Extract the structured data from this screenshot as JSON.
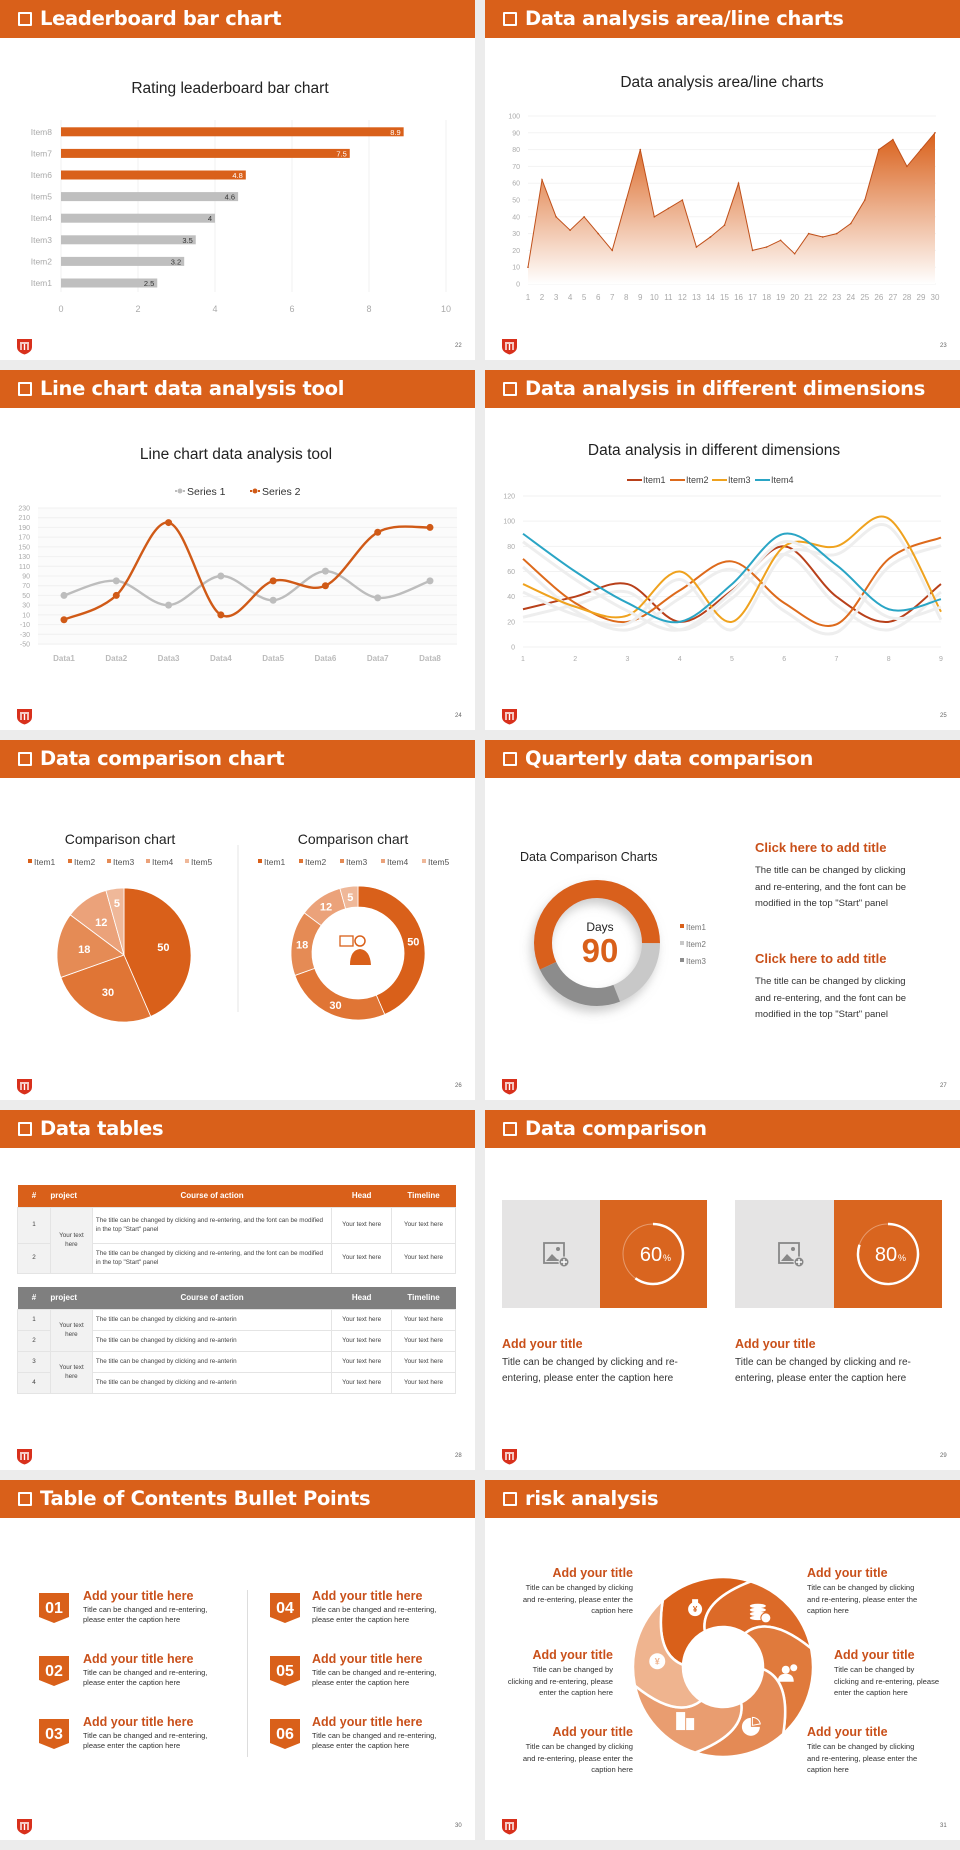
{
  "colors": {
    "accent": "#d9601a",
    "grey": "#bfbfbf",
    "title_orange": "#c9501a"
  },
  "slides": [
    {
      "title": "Leaderboard bar chart",
      "page": "22"
    },
    {
      "title": "Data analysis area/line charts",
      "page": "23"
    },
    {
      "title": "Line chart data analysis tool",
      "page": "24"
    },
    {
      "title": "Data analysis in different dimensions",
      "page": "25"
    },
    {
      "title": "Data comparison chart",
      "page": "26"
    },
    {
      "title": "Quarterly data comparison",
      "page": "27"
    },
    {
      "title": "Data tables",
      "page": "28"
    },
    {
      "title": "Data comparison",
      "page": "29"
    },
    {
      "title": "Table of Contents Bullet Points",
      "page": "30"
    },
    {
      "title": "risk analysis",
      "page": "31"
    }
  ],
  "chart_data": [
    {
      "type": "bar",
      "orientation": "horizontal",
      "title": "Rating leaderboard bar chart",
      "categories": [
        "Item1",
        "Item2",
        "Item3",
        "Item4",
        "Item5",
        "Item6",
        "Item7",
        "Item8"
      ],
      "values": [
        2.5,
        3.2,
        3.5,
        4,
        4.6,
        4.8,
        7.5,
        8.9
      ],
      "highlighted": [
        "Item6",
        "Item7",
        "Item8"
      ],
      "xlim": [
        0,
        10
      ],
      "xticks": [
        0,
        2,
        4,
        6,
        8,
        10
      ],
      "colors": {
        "highlight": "#d9601a",
        "base": "#bfbfbf"
      },
      "data_labels": true
    },
    {
      "type": "area",
      "title": "Data analysis area/line charts",
      "x": [
        1,
        2,
        3,
        4,
        5,
        6,
        7,
        8,
        9,
        10,
        11,
        12,
        13,
        14,
        15,
        16,
        17,
        18,
        19,
        20,
        21,
        22,
        23,
        24,
        25,
        26,
        27,
        28,
        29,
        30
      ],
      "values": [
        10,
        62,
        40,
        32,
        40,
        30,
        20,
        50,
        80,
        40,
        45,
        50,
        22,
        28,
        35,
        60,
        20,
        22,
        26,
        18,
        30,
        28,
        30,
        36,
        50,
        80,
        86,
        70,
        80,
        90
      ],
      "ylim": [
        0,
        100
      ],
      "yticks": [
        0,
        10,
        20,
        30,
        40,
        50,
        60,
        70,
        80,
        90,
        100
      ],
      "color": "#d9601a"
    },
    {
      "type": "line",
      "smooth": true,
      "title": "Line chart data analysis tool",
      "categories": [
        "Data1",
        "Data2",
        "Data3",
        "Data4",
        "Data5",
        "Data6",
        "Data7",
        "Data8"
      ],
      "series": [
        {
          "name": "Series 1",
          "values": [
            50,
            80,
            30,
            90,
            40,
            100,
            45,
            80
          ],
          "color": "#bdbdbd"
        },
        {
          "name": "Series 2",
          "values": [
            0,
            50,
            200,
            10,
            80,
            70,
            180,
            190
          ],
          "color": "#d05a17"
        }
      ],
      "ylim": [
        -50,
        230
      ],
      "yticks": [
        -50,
        -30,
        -10,
        10,
        30,
        50,
        70,
        90,
        110,
        130,
        150,
        170,
        190,
        210,
        230
      ],
      "legend": "top"
    },
    {
      "type": "line",
      "smooth": true,
      "title": "Data analysis in different dimensions",
      "x": [
        1,
        2,
        3,
        4,
        5,
        6,
        7,
        8,
        9
      ],
      "series": [
        {
          "name": "Item1",
          "values": [
            30,
            40,
            50,
            20,
            45,
            80,
            40,
            20,
            50
          ],
          "color": "#b8401a"
        },
        {
          "name": "Item2",
          "values": [
            70,
            35,
            20,
            45,
            68,
            35,
            18,
            70,
            87
          ],
          "color": "#dd6a1c"
        },
        {
          "name": "Item3",
          "values": [
            50,
            32,
            25,
            60,
            20,
            80,
            80,
            102,
            28
          ],
          "color": "#efa21e"
        },
        {
          "name": "Item4",
          "values": [
            90,
            60,
            35,
            20,
            50,
            90,
            65,
            30,
            38
          ],
          "color": "#2aa5c5"
        }
      ],
      "ylim": [
        0,
        120
      ],
      "yticks": [
        0,
        20,
        40,
        60,
        80,
        100,
        120
      ],
      "legend": "top"
    },
    {
      "type": "pie",
      "title": "Comparison chart",
      "labels": [
        "Item1",
        "Item2",
        "Item3",
        "Item4",
        "Item5"
      ],
      "values": [
        50,
        30,
        18,
        12,
        5
      ],
      "colors": [
        "#d9601a",
        "#e07535",
        "#e58b55",
        "#eba27a",
        "#efb899"
      ],
      "legend": "top"
    },
    {
      "type": "pie",
      "donut": true,
      "title": "Comparison chart",
      "labels": [
        "Item1",
        "Item2",
        "Item3",
        "Item4",
        "Item5"
      ],
      "values": [
        50,
        30,
        18,
        12,
        5
      ],
      "colors": [
        "#d9601a",
        "#e07535",
        "#e58b55",
        "#eba27a",
        "#efb899"
      ],
      "center_icon": "presenter-icon",
      "legend": "top"
    },
    {
      "type": "pie",
      "donut": true,
      "title": "Data Comparison Charts",
      "labels": [
        "Item1",
        "Item2",
        "Item3"
      ],
      "values": [
        57,
        19,
        24
      ],
      "colors": [
        "#d9601a",
        "#c8c8c8",
        "#8c8c8c"
      ],
      "center_label": "Days",
      "center_value": "90",
      "legend": "right"
    }
  ],
  "quarterly": {
    "blocks": [
      {
        "title": "Click here to add title",
        "lines": [
          "The title can be changed by clicking",
          "and re-entering, and the font can be",
          "modified in the top \"Start\" panel"
        ]
      },
      {
        "title": "Click here to add title",
        "lines": [
          "The title can be changed by clicking",
          "and re-entering, and the font can be",
          "modified in the top \"Start\" panel"
        ]
      }
    ]
  },
  "tables": [
    {
      "header": [
        "#",
        "project",
        "Course of action",
        "Head",
        "Timeline"
      ],
      "header_color": "#d9601a",
      "projects": [
        {
          "label": "Your text here",
          "span": 2
        }
      ],
      "rows": [
        {
          "num": "1",
          "course": "The title can be changed by clicking and re-entering, and the font can be modified in the top \"Start\" panel",
          "head": "Your text here",
          "timeline": "Your text here"
        },
        {
          "num": "2",
          "course": "The title can be changed by clicking and re-entering, and the font can be modified in the top \"Start\" panel",
          "head": "Your text here",
          "timeline": "Your text here"
        }
      ]
    },
    {
      "header": [
        "#",
        "project",
        "Course of action",
        "Head",
        "Timeline"
      ],
      "header_color": "#7f7f7f",
      "projects": [
        {
          "label": "Your text here",
          "span": 2
        },
        {
          "label": "Your text here",
          "span": 2
        }
      ],
      "rows": [
        {
          "num": "1",
          "course": "The title can be changed by clicking and re-anterin",
          "head": "Your text here",
          "timeline": "Your text here"
        },
        {
          "num": "2",
          "course": "The title can be changed by clicking and re-anterin",
          "head": "Your text here",
          "timeline": "Your text here"
        },
        {
          "num": "3",
          "course": "The title can be changed by clicking and re-anterin",
          "head": "Your text here",
          "timeline": "Your text here"
        },
        {
          "num": "4",
          "course": "The title can be changed by clicking and re-anterin",
          "head": "Your text here",
          "timeline": "Your text here"
        }
      ]
    }
  ],
  "data_comparison": {
    "cards": [
      {
        "percent": 60,
        "value": "60",
        "unit": "%",
        "icon": "image-add-icon",
        "title": "Add your title",
        "lines": [
          "Title can be changed by clicking and re-",
          "entering, please enter the caption here"
        ]
      },
      {
        "percent": 80,
        "value": "80",
        "unit": "%",
        "icon": "image-add-icon",
        "title": "Add your title",
        "lines": [
          "Title can be changed by clicking and re-",
          "entering, please enter the caption here"
        ]
      }
    ]
  },
  "toc": {
    "items": [
      {
        "num": "01",
        "title": "Add your title here",
        "lines": [
          "Title can be changed and re-entering,",
          "please enter the caption here"
        ]
      },
      {
        "num": "02",
        "title": "Add your title here",
        "lines": [
          "Title can be changed and re-entering,",
          "please enter the caption here"
        ]
      },
      {
        "num": "03",
        "title": "Add your title here",
        "lines": [
          "Title can be changed and re-entering,",
          "please enter the caption here"
        ]
      },
      {
        "num": "04",
        "title": "Add your title here",
        "lines": [
          "Title can be changed and re-entering,",
          "please enter the caption here"
        ]
      },
      {
        "num": "05",
        "title": "Add your title here",
        "lines": [
          "Title can be changed and re-entering,",
          "please enter the caption here"
        ]
      },
      {
        "num": "06",
        "title": "Add your title here",
        "lines": [
          "Title can be changed and re-entering,",
          "please enter the caption here"
        ]
      }
    ]
  },
  "risk": {
    "icons": [
      "money-bag-icon",
      "coins-icon",
      "people-icon",
      "pie-chart-icon",
      "building-icon",
      "yen-person-icon"
    ],
    "items": [
      {
        "title": "Add your title",
        "lines": [
          "Title can be changed by clicking",
          "and re-entering, please enter the",
          "caption here"
        ]
      },
      {
        "title": "Add your title",
        "lines": [
          "Title can be changed by",
          "clicking and re-entering, please",
          "enter the caption here"
        ]
      },
      {
        "title": "Add your title",
        "lines": [
          "Title can be changed by clicking",
          "and re-entering, please enter the",
          "caption here"
        ]
      },
      {
        "title": "Add your title",
        "lines": [
          "Title can be changed by clicking",
          "and re-entering, please enter the",
          "caption here"
        ]
      },
      {
        "title": "Add your title",
        "lines": [
          "Title can be changed by",
          "clicking and re-entering, please",
          "enter the caption here"
        ]
      },
      {
        "title": "Add your title",
        "lines": [
          "Title can be changed by clicking",
          "and re-entering, please enter the",
          "caption here"
        ]
      }
    ]
  }
}
